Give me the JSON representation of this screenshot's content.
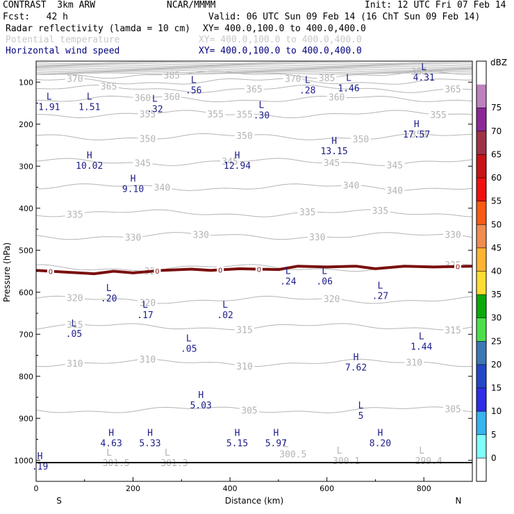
{
  "header": {
    "model": "CONTRAST  3km ARW",
    "center": "NCAR/MMMM",
    "init": "Init: 12 UTC Fri 07 Feb 14",
    "fcst": "Fcst:   42 h",
    "valid": "Valid: 06 UTC Sun 09 Feb 14 (16 ChT Sun 09 Feb 14)",
    "field1": "Radar reflectivity (lamda = 10 cm)",
    "field1_xy": "XY= 400.0,100.0 to 400.0,400.0",
    "field2": "Potential temperature",
    "field2_xy": "XY= 400.0,100.0 to 400.0,400.0",
    "field3": "Horizontal wind speed",
    "field3_xy": "XY= 400.0,100.0 to 400.0,400.0"
  },
  "colors": {
    "theta": "#b4b4b4",
    "wind": "#1c1c8a",
    "freezing": "#7a0f0f"
  },
  "chart_data": {
    "type": "cross-section",
    "xlabel": "Distance (km)",
    "ylabel": "Pressure (hPa)",
    "xlim": [
      0,
      900
    ],
    "ylim": [
      1050,
      50
    ],
    "xticks": [
      0,
      200,
      400,
      600,
      800
    ],
    "yticks": [
      100,
      200,
      300,
      400,
      500,
      600,
      700,
      800,
      900,
      1000
    ],
    "left_end_label": "S",
    "right_end_label": "N",
    "colorbar": {
      "unit": "dBZ",
      "levels": [
        0,
        5,
        10,
        15,
        20,
        25,
        30,
        35,
        40,
        45,
        50,
        55,
        60,
        65,
        70,
        75
      ],
      "colors": [
        "#ffffff",
        "#7ffffa",
        "#36b4f0",
        "#2d2dea",
        "#2346c8",
        "#3c78b4",
        "#4be04b",
        "#0aaa0a",
        "#ffdc32",
        "#ffb432",
        "#f08c50",
        "#fa5a14",
        "#f01010",
        "#c81414",
        "#a03246",
        "#8c2896",
        "#be82be",
        "#ffffff"
      ]
    },
    "theta_contours": [
      {
        "value": 305,
        "pressure": 880,
        "label": "305",
        "labels_x": [
          440,
          860
        ]
      },
      {
        "value": 310,
        "pressure": 768,
        "label": "310",
        "labels_x": [
          80,
          230,
          430,
          780
        ]
      },
      {
        "value": 315,
        "pressure": 682,
        "label": "315",
        "labels_x": [
          80,
          430,
          860
        ]
      },
      {
        "value": 320,
        "pressure": 618,
        "label": "320",
        "labels_x": [
          80,
          230,
          610
        ]
      },
      {
        "value": 325,
        "pressure": 542,
        "label": "325",
        "labels_x": [
          240,
          860
        ]
      },
      {
        "value": 330,
        "pressure": 466,
        "label": "330",
        "labels_x": [
          200,
          340,
          580,
          860
        ]
      },
      {
        "value": 335,
        "pressure": 412,
        "label": "335",
        "labels_x": [
          80,
          560,
          710
        ]
      },
      {
        "value": 340,
        "pressure": 350,
        "label": "340",
        "labels_x": [
          260,
          650,
          740
        ]
      },
      {
        "value": 345,
        "pressure": 290,
        "label": "345",
        "labels_x": [
          220,
          400,
          610,
          740
        ]
      },
      {
        "value": 350,
        "pressure": 230,
        "label": "350",
        "labels_x": [
          230,
          430,
          670,
          790
        ]
      },
      {
        "value": 355,
        "pressure": 176,
        "label": "355",
        "labels_x": [
          230,
          370,
          430,
          830
        ]
      },
      {
        "value": 360,
        "pressure": 140,
        "label": "360",
        "labels_x": [
          220,
          280,
          620
        ]
      },
      {
        "value": 365,
        "pressure": 116,
        "label": "365",
        "labels_x": [
          150,
          450,
          860
        ]
      },
      {
        "value": 370,
        "pressure": 98,
        "label": "370",
        "labels_x": [
          80,
          530
        ]
      },
      {
        "value": 385,
        "pressure": 82,
        "label": "385",
        "labels_x": [
          280,
          600,
          790
        ]
      }
    ],
    "theta_surface_labels": [
      {
        "x": 165,
        "p": 1005,
        "text": "301.5"
      },
      {
        "x": 285,
        "p": 1005,
        "text": "301.3"
      },
      {
        "x": 530,
        "p": 985,
        "text": "300.5"
      },
      {
        "x": 640,
        "p": 1000,
        "text": "300.1"
      },
      {
        "x": 810,
        "p": 1000,
        "text": "299.4"
      }
    ],
    "freezing_level": {
      "label": "0",
      "points": [
        [
          0,
          548
        ],
        [
          60,
          552
        ],
        [
          120,
          556
        ],
        [
          160,
          550
        ],
        [
          200,
          554
        ],
        [
          260,
          548
        ],
        [
          320,
          545
        ],
        [
          360,
          548
        ],
        [
          420,
          544
        ],
        [
          500,
          546
        ],
        [
          540,
          538
        ],
        [
          600,
          540
        ],
        [
          660,
          538
        ],
        [
          700,
          544
        ],
        [
          760,
          538
        ],
        [
          820,
          540
        ],
        [
          900,
          538
        ]
      ],
      "labels_x": [
        30,
        250,
        380,
        460,
        870
      ]
    },
    "wind_extrema": [
      {
        "type": "L",
        "value": "1.91",
        "x": 27,
        "p": 145
      },
      {
        "type": "L",
        "value": "1.51",
        "x": 110,
        "p": 145
      },
      {
        "type": "L",
        "value": ".32",
        "x": 245,
        "p": 150
      },
      {
        "type": "L",
        "value": ".56",
        "x": 325,
        "p": 105
      },
      {
        "type": "L",
        "value": ".30",
        "x": 465,
        "p": 165
      },
      {
        "type": "L",
        "value": ".28",
        "x": 560,
        "p": 105
      },
      {
        "type": "L",
        "value": "1.46",
        "x": 645,
        "p": 100
      },
      {
        "type": "L",
        "value": "4.31",
        "x": 800,
        "p": 75
      },
      {
        "type": "H",
        "value": "17.57",
        "x": 785,
        "p": 210
      },
      {
        "type": "H",
        "value": "13.15",
        "x": 615,
        "p": 250
      },
      {
        "type": "H",
        "value": "12.94",
        "x": 415,
        "p": 285
      },
      {
        "type": "H",
        "value": "10.02",
        "x": 110,
        "p": 285
      },
      {
        "type": "H",
        "value": "9.10",
        "x": 200,
        "p": 340
      },
      {
        "type": "L",
        "value": ".24",
        "x": 520,
        "p": 560
      },
      {
        "type": "L",
        "value": ".06",
        "x": 595,
        "p": 560
      },
      {
        "type": "L",
        "value": ".20",
        "x": 150,
        "p": 600
      },
      {
        "type": "L",
        "value": ".27",
        "x": 710,
        "p": 595
      },
      {
        "type": "L",
        "value": ".17",
        "x": 225,
        "p": 640
      },
      {
        "type": "L",
        "value": ".02",
        "x": 390,
        "p": 640
      },
      {
        "type": "L",
        "value": ".05",
        "x": 78,
        "p": 685
      },
      {
        "type": "L",
        "value": "1.44",
        "x": 795,
        "p": 715
      },
      {
        "type": "L",
        "value": ".05",
        "x": 315,
        "p": 720
      },
      {
        "type": "H",
        "value": "7.62",
        "x": 660,
        "p": 765
      },
      {
        "type": "H",
        "value": "5.03",
        "x": 340,
        "p": 855
      },
      {
        "type": "L",
        "value": "5",
        "x": 670,
        "p": 880
      },
      {
        "type": "H",
        "value": "4.63",
        "x": 155,
        "p": 945
      },
      {
        "type": "H",
        "value": "5.33",
        "x": 235,
        "p": 945
      },
      {
        "type": "H",
        "value": "5.15",
        "x": 415,
        "p": 945
      },
      {
        "type": "H",
        "value": "5.97",
        "x": 495,
        "p": 945
      },
      {
        "type": "H",
        "value": "8.20",
        "x": 710,
        "p": 945
      },
      {
        "type": "H",
        "value": ".19",
        "x": 8,
        "p": 1000
      }
    ]
  }
}
